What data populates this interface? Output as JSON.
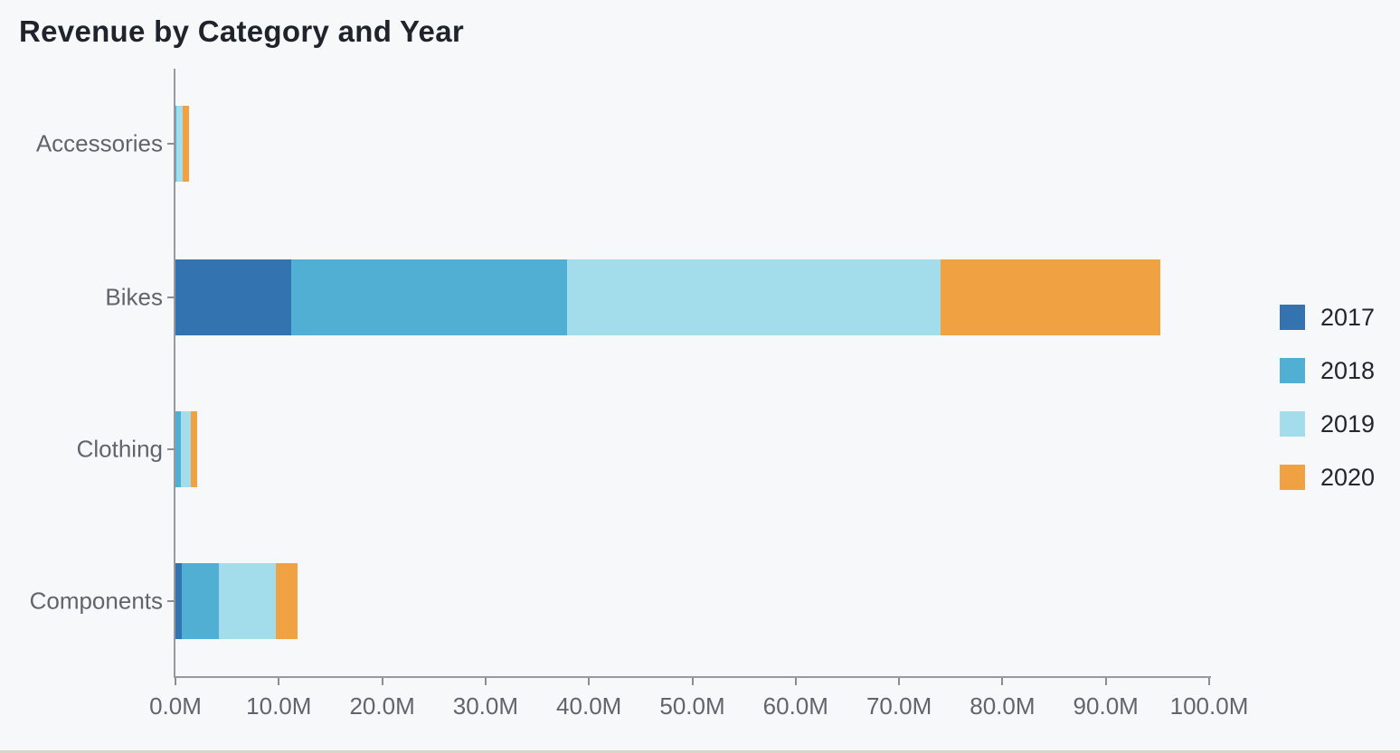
{
  "title": "Revenue by Category and Year",
  "colors": {
    "background": "#f7f8fa",
    "title_text": "#1f232b",
    "axis_line": "#98999c",
    "tick_label_text": "#61656b",
    "legend_text": "#23262d",
    "bottom_edge": "#d9d6c9",
    "series_2017": "#3373b0",
    "series_2018": "#50afd2",
    "series_2019": "#a3dcea",
    "series_2020": "#f0a243"
  },
  "chart_data": {
    "type": "bar",
    "orientation": "horizontal",
    "stacked": true,
    "title": "Revenue by Category and Year",
    "categories": [
      "Accessories",
      "Bikes",
      "Clothing",
      "Components"
    ],
    "series": [
      {
        "name": "2017",
        "color": "#3373b0",
        "values": [
          0.03,
          11.2,
          0.03,
          0.62
        ]
      },
      {
        "name": "2018",
        "color": "#50afd2",
        "values": [
          0.09,
          26.7,
          0.49,
          3.61
        ]
      },
      {
        "name": "2019",
        "color": "#a3dcea",
        "values": [
          0.59,
          36.1,
          1.01,
          5.48
        ]
      },
      {
        "name": "2020",
        "color": "#f0a243",
        "values": [
          0.57,
          21.3,
          0.6,
          2.09
        ]
      }
    ],
    "values_unit": "millions",
    "xlabel": "",
    "ylabel": "",
    "xlim": [
      0,
      100
    ],
    "x_ticks": [
      "0.0M",
      "10.0M",
      "20.0M",
      "30.0M",
      "40.0M",
      "50.0M",
      "60.0M",
      "70.0M",
      "80.0M",
      "90.0M",
      "100.0M"
    ],
    "grid": false,
    "legend_position": "right",
    "legend_labels": [
      "2017",
      "2018",
      "2019",
      "2020"
    ]
  }
}
